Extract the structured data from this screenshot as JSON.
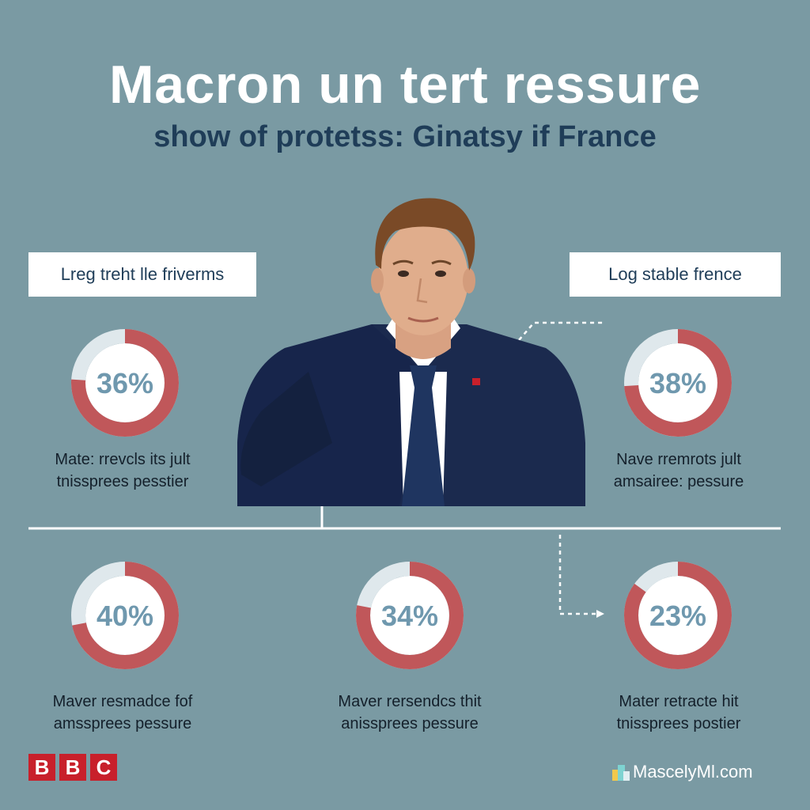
{
  "header": {
    "title": "Macron un tert ressure",
    "subtitle": "show of protetss: Ginatsy if France"
  },
  "boxes": {
    "left": "Lreg treht lle friverms",
    "right": "Log stable frence"
  },
  "colors": {
    "background": "#7a9aa3",
    "donut_fill": "#c0575a",
    "donut_track": "#dfe8ec",
    "donut_text": "#6f98ae",
    "subtitle": "#1f3d58",
    "bbc_red": "#c8202b"
  },
  "chart_data": {
    "type": "pie",
    "style": "donut",
    "items": [
      {
        "label": "36%",
        "value": 36,
        "caption": [
          "Mate: rrevcls its jult",
          "tnisspree​s pessti​er"
        ]
      },
      {
        "label": "38%",
        "value": 38,
        "caption": [
          "Nave rremrots jult",
          "amsairee: pessure"
        ]
      },
      {
        "label": "40%",
        "value": 40,
        "caption": [
          "Maver resmadce fof",
          "amsspree​s pessure"
        ]
      },
      {
        "label": "34%",
        "value": 34,
        "caption": [
          "Maver rersendcs thit",
          "anisspree​s pessure"
        ]
      },
      {
        "label": "23%",
        "value": 23,
        "caption": [
          "Mater retracte hit",
          "tnisspree​s postier"
        ]
      }
    ]
  },
  "footer": {
    "logo_letters": [
      "B",
      "B",
      "C"
    ],
    "watermark": "MascelyMl.com"
  }
}
